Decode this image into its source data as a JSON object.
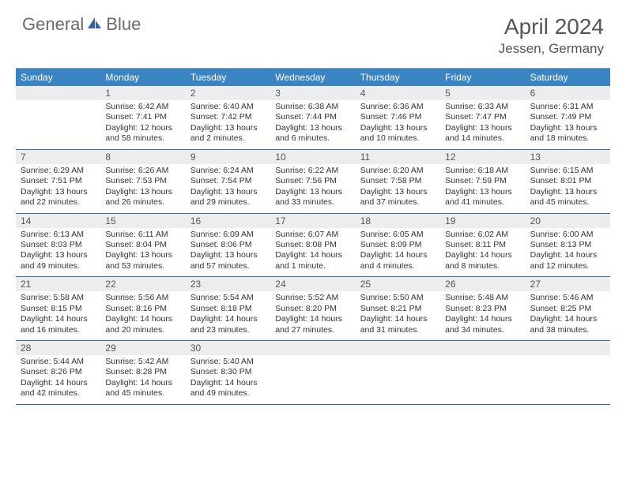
{
  "brand": {
    "part1": "General",
    "part2": "Blue"
  },
  "title": "April 2024",
  "location": "Jessen, Germany",
  "header_bg": "#3b84c4",
  "header_text": "#ffffff",
  "dnum_bg": "#ecedee",
  "row_border": "#3b6ea0",
  "weekdays": [
    "Sunday",
    "Monday",
    "Tuesday",
    "Wednesday",
    "Thursday",
    "Friday",
    "Saturday"
  ],
  "weeks": [
    [
      {
        "n": "",
        "sr": "",
        "ss": "",
        "dl": ""
      },
      {
        "n": "1",
        "sr": "Sunrise: 6:42 AM",
        "ss": "Sunset: 7:41 PM",
        "dl": "Daylight: 12 hours and 58 minutes."
      },
      {
        "n": "2",
        "sr": "Sunrise: 6:40 AM",
        "ss": "Sunset: 7:42 PM",
        "dl": "Daylight: 13 hours and 2 minutes."
      },
      {
        "n": "3",
        "sr": "Sunrise: 6:38 AM",
        "ss": "Sunset: 7:44 PM",
        "dl": "Daylight: 13 hours and 6 minutes."
      },
      {
        "n": "4",
        "sr": "Sunrise: 6:36 AM",
        "ss": "Sunset: 7:46 PM",
        "dl": "Daylight: 13 hours and 10 minutes."
      },
      {
        "n": "5",
        "sr": "Sunrise: 6:33 AM",
        "ss": "Sunset: 7:47 PM",
        "dl": "Daylight: 13 hours and 14 minutes."
      },
      {
        "n": "6",
        "sr": "Sunrise: 6:31 AM",
        "ss": "Sunset: 7:49 PM",
        "dl": "Daylight: 13 hours and 18 minutes."
      }
    ],
    [
      {
        "n": "7",
        "sr": "Sunrise: 6:29 AM",
        "ss": "Sunset: 7:51 PM",
        "dl": "Daylight: 13 hours and 22 minutes."
      },
      {
        "n": "8",
        "sr": "Sunrise: 6:26 AM",
        "ss": "Sunset: 7:53 PM",
        "dl": "Daylight: 13 hours and 26 minutes."
      },
      {
        "n": "9",
        "sr": "Sunrise: 6:24 AM",
        "ss": "Sunset: 7:54 PM",
        "dl": "Daylight: 13 hours and 29 minutes."
      },
      {
        "n": "10",
        "sr": "Sunrise: 6:22 AM",
        "ss": "Sunset: 7:56 PM",
        "dl": "Daylight: 13 hours and 33 minutes."
      },
      {
        "n": "11",
        "sr": "Sunrise: 6:20 AM",
        "ss": "Sunset: 7:58 PM",
        "dl": "Daylight: 13 hours and 37 minutes."
      },
      {
        "n": "12",
        "sr": "Sunrise: 6:18 AM",
        "ss": "Sunset: 7:59 PM",
        "dl": "Daylight: 13 hours and 41 minutes."
      },
      {
        "n": "13",
        "sr": "Sunrise: 6:15 AM",
        "ss": "Sunset: 8:01 PM",
        "dl": "Daylight: 13 hours and 45 minutes."
      }
    ],
    [
      {
        "n": "14",
        "sr": "Sunrise: 6:13 AM",
        "ss": "Sunset: 8:03 PM",
        "dl": "Daylight: 13 hours and 49 minutes."
      },
      {
        "n": "15",
        "sr": "Sunrise: 6:11 AM",
        "ss": "Sunset: 8:04 PM",
        "dl": "Daylight: 13 hours and 53 minutes."
      },
      {
        "n": "16",
        "sr": "Sunrise: 6:09 AM",
        "ss": "Sunset: 8:06 PM",
        "dl": "Daylight: 13 hours and 57 minutes."
      },
      {
        "n": "17",
        "sr": "Sunrise: 6:07 AM",
        "ss": "Sunset: 8:08 PM",
        "dl": "Daylight: 14 hours and 1 minute."
      },
      {
        "n": "18",
        "sr": "Sunrise: 6:05 AM",
        "ss": "Sunset: 8:09 PM",
        "dl": "Daylight: 14 hours and 4 minutes."
      },
      {
        "n": "19",
        "sr": "Sunrise: 6:02 AM",
        "ss": "Sunset: 8:11 PM",
        "dl": "Daylight: 14 hours and 8 minutes."
      },
      {
        "n": "20",
        "sr": "Sunrise: 6:00 AM",
        "ss": "Sunset: 8:13 PM",
        "dl": "Daylight: 14 hours and 12 minutes."
      }
    ],
    [
      {
        "n": "21",
        "sr": "Sunrise: 5:58 AM",
        "ss": "Sunset: 8:15 PM",
        "dl": "Daylight: 14 hours and 16 minutes."
      },
      {
        "n": "22",
        "sr": "Sunrise: 5:56 AM",
        "ss": "Sunset: 8:16 PM",
        "dl": "Daylight: 14 hours and 20 minutes."
      },
      {
        "n": "23",
        "sr": "Sunrise: 5:54 AM",
        "ss": "Sunset: 8:18 PM",
        "dl": "Daylight: 14 hours and 23 minutes."
      },
      {
        "n": "24",
        "sr": "Sunrise: 5:52 AM",
        "ss": "Sunset: 8:20 PM",
        "dl": "Daylight: 14 hours and 27 minutes."
      },
      {
        "n": "25",
        "sr": "Sunrise: 5:50 AM",
        "ss": "Sunset: 8:21 PM",
        "dl": "Daylight: 14 hours and 31 minutes."
      },
      {
        "n": "26",
        "sr": "Sunrise: 5:48 AM",
        "ss": "Sunset: 8:23 PM",
        "dl": "Daylight: 14 hours and 34 minutes."
      },
      {
        "n": "27",
        "sr": "Sunrise: 5:46 AM",
        "ss": "Sunset: 8:25 PM",
        "dl": "Daylight: 14 hours and 38 minutes."
      }
    ],
    [
      {
        "n": "28",
        "sr": "Sunrise: 5:44 AM",
        "ss": "Sunset: 8:26 PM",
        "dl": "Daylight: 14 hours and 42 minutes."
      },
      {
        "n": "29",
        "sr": "Sunrise: 5:42 AM",
        "ss": "Sunset: 8:28 PM",
        "dl": "Daylight: 14 hours and 45 minutes."
      },
      {
        "n": "30",
        "sr": "Sunrise: 5:40 AM",
        "ss": "Sunset: 8:30 PM",
        "dl": "Daylight: 14 hours and 49 minutes."
      },
      {
        "n": "",
        "sr": "",
        "ss": "",
        "dl": ""
      },
      {
        "n": "",
        "sr": "",
        "ss": "",
        "dl": ""
      },
      {
        "n": "",
        "sr": "",
        "ss": "",
        "dl": ""
      },
      {
        "n": "",
        "sr": "",
        "ss": "",
        "dl": ""
      }
    ]
  ]
}
